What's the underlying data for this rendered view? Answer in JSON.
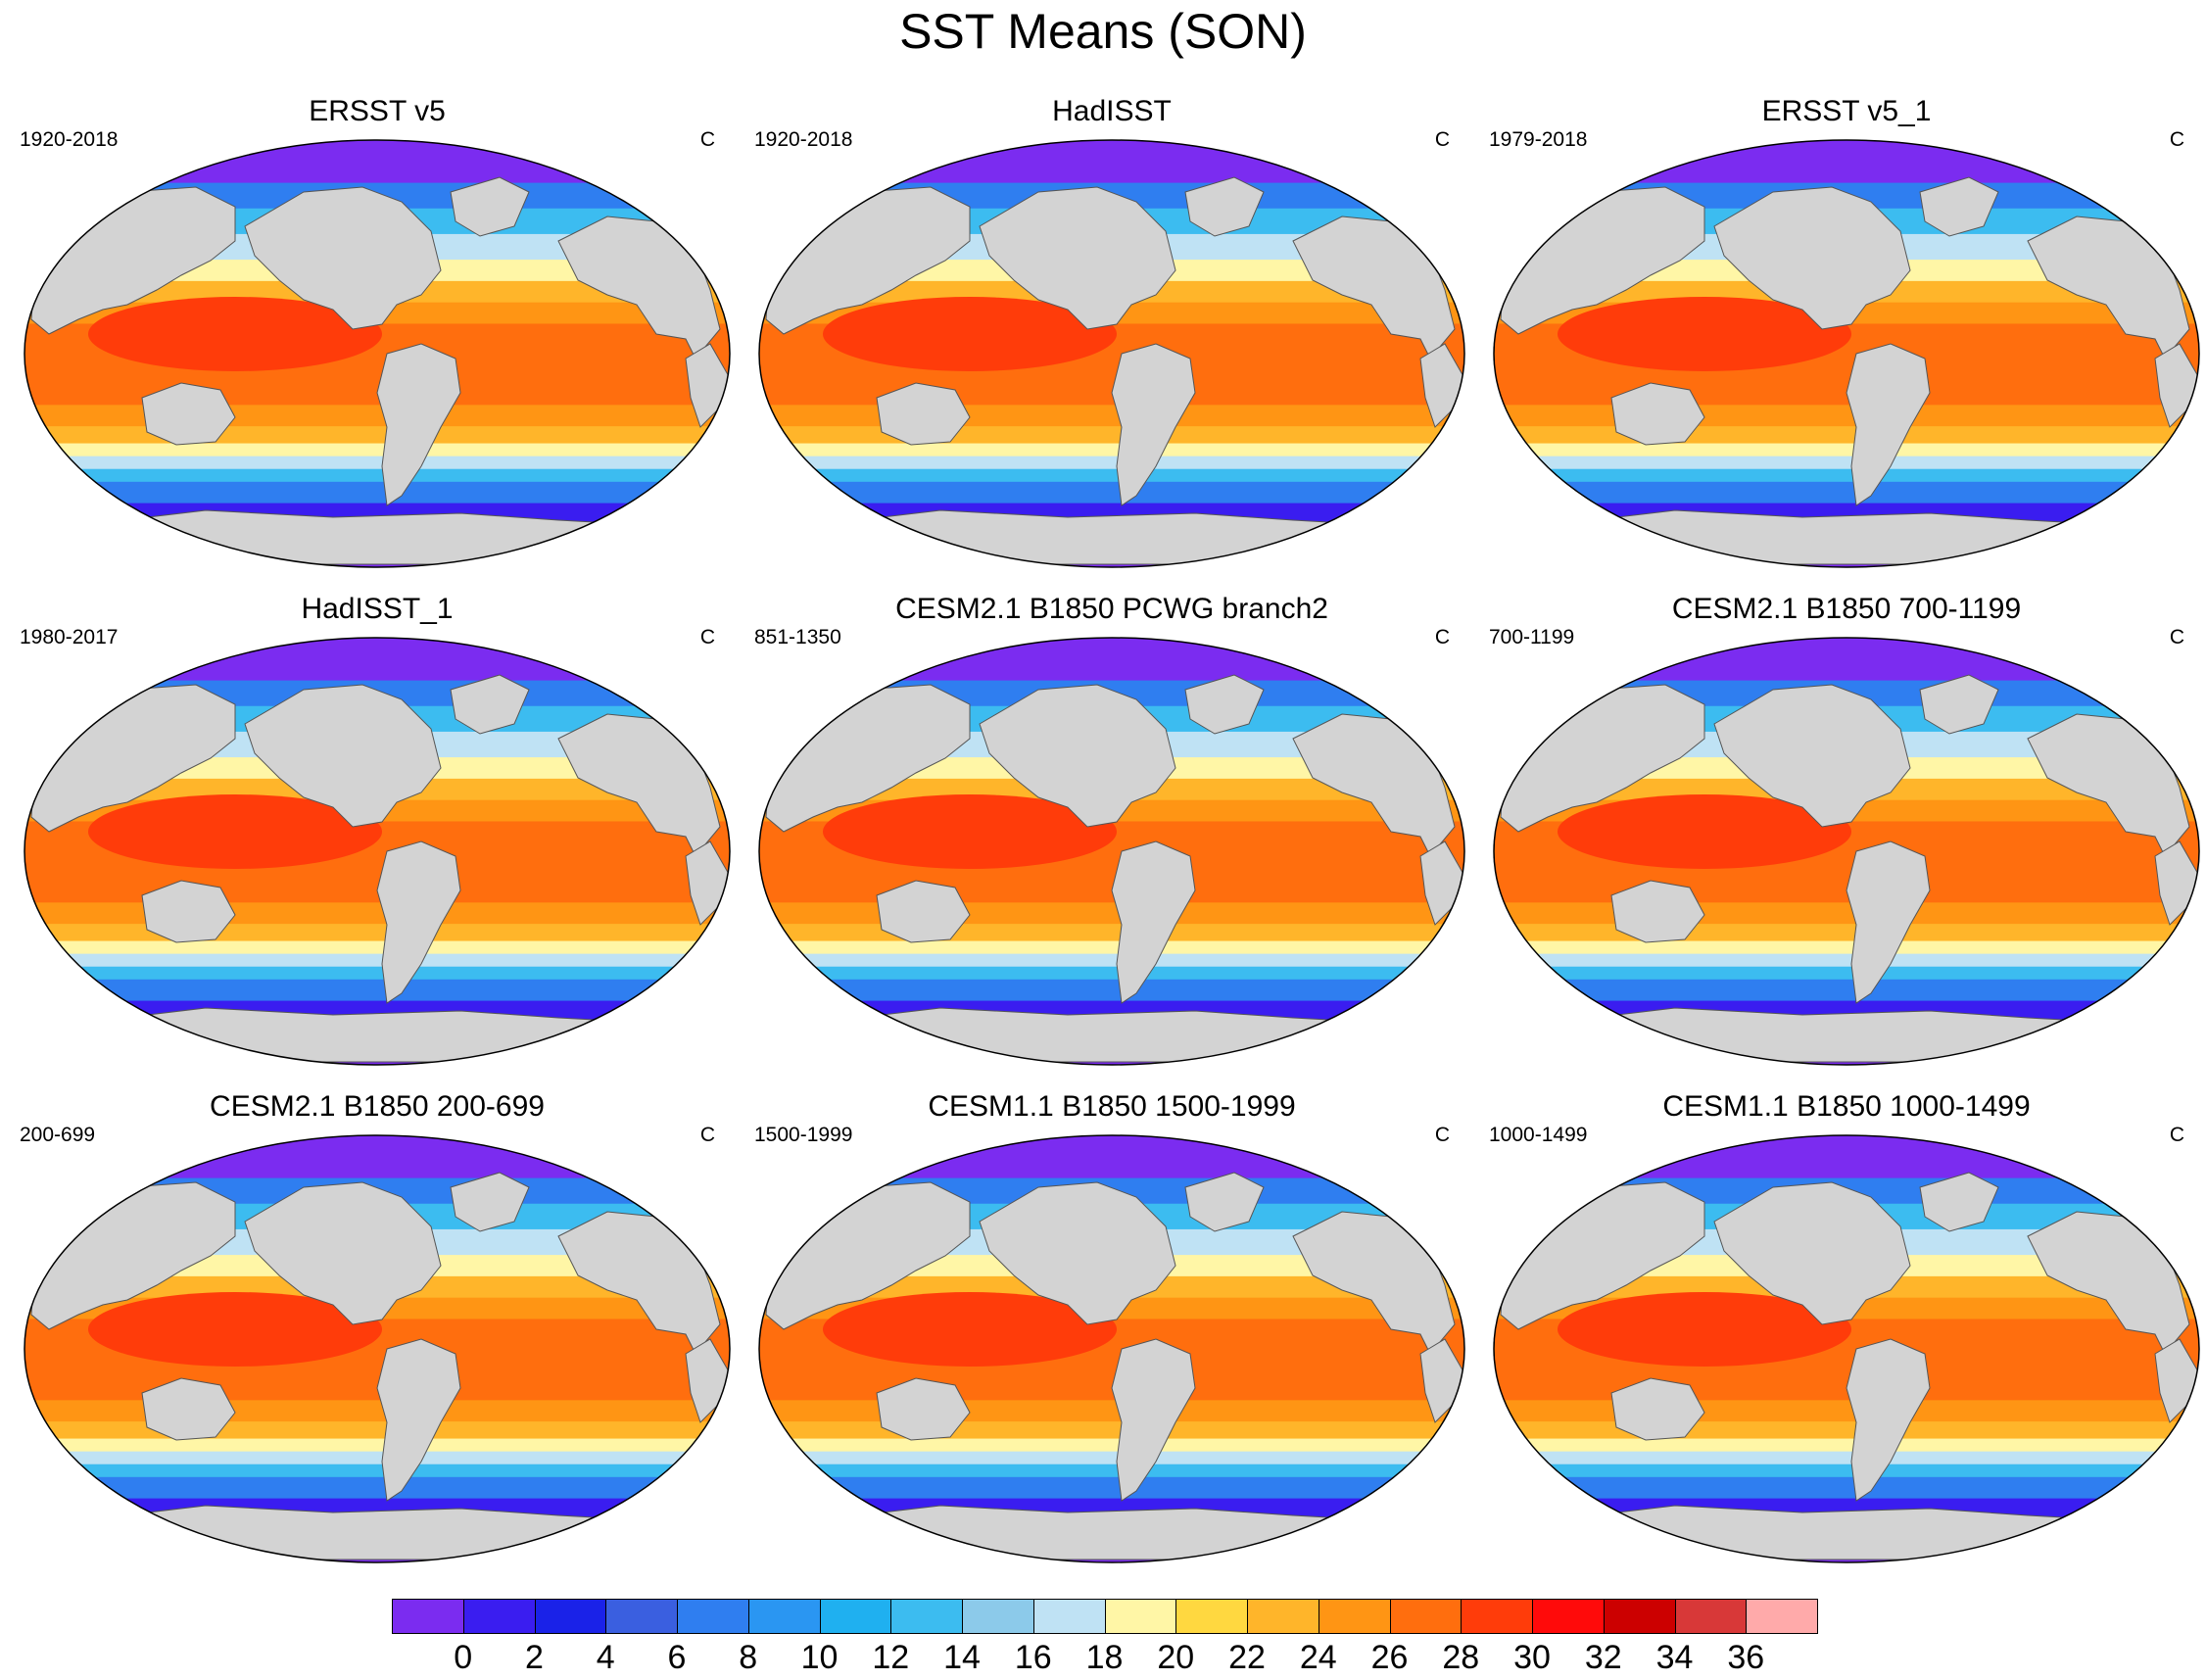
{
  "title": "SST Means (SON)",
  "panels": [
    {
      "title": "ERSST v5",
      "period": "1920-2018",
      "units": "C"
    },
    {
      "title": "HadISST",
      "period": "1920-2018",
      "units": "C"
    },
    {
      "title": "ERSST v5_1",
      "period": "1979-2018",
      "units": "C"
    },
    {
      "title": "HadISST_1",
      "period": "1980-2017",
      "units": "C"
    },
    {
      "title": "CESM2.1 B1850 PCWG branch2",
      "period": "851-1350",
      "units": "C"
    },
    {
      "title": "CESM2.1 B1850 700-1199",
      "period": "700-1199",
      "units": "C"
    },
    {
      "title": "CESM2.1 B1850 200-699",
      "period": "200-699",
      "units": "C"
    },
    {
      "title": "CESM1.1 B1850 1500-1999",
      "period": "1500-1999",
      "units": "C"
    },
    {
      "title": "CESM1.1 B1850 1000-1499",
      "period": "1000-1499",
      "units": "C"
    }
  ],
  "colorbar": {
    "labels": [
      "0",
      "2",
      "4",
      "6",
      "8",
      "10",
      "12",
      "14",
      "16",
      "18",
      "20",
      "22",
      "24",
      "26",
      "28",
      "30",
      "32",
      "34",
      "36"
    ],
    "colors": [
      "#7b2cf0",
      "#3a1df0",
      "#1a22e8",
      "#3a5fe0",
      "#2f7ef0",
      "#2a96f2",
      "#1fb0f0",
      "#3cbcf0",
      "#8ccaea",
      "#bfe2f4",
      "#fff6a6",
      "#ffd840",
      "#ffb52a",
      "#ff9514",
      "#ff6e0e",
      "#ff3c0a",
      "#ff0a0a",
      "#cc0000",
      "#d83838",
      "#ffaaaa"
    ]
  },
  "map": {
    "land_color": "#d3d3d3",
    "band_colors": [
      "#7b2cf0",
      "#3a1df0",
      "#2f7ef0",
      "#3cbcf0",
      "#bfe2f4",
      "#fff6a6",
      "#ffb52a",
      "#ff9514",
      "#ff6e0e",
      "#ff3c0a"
    ]
  }
}
